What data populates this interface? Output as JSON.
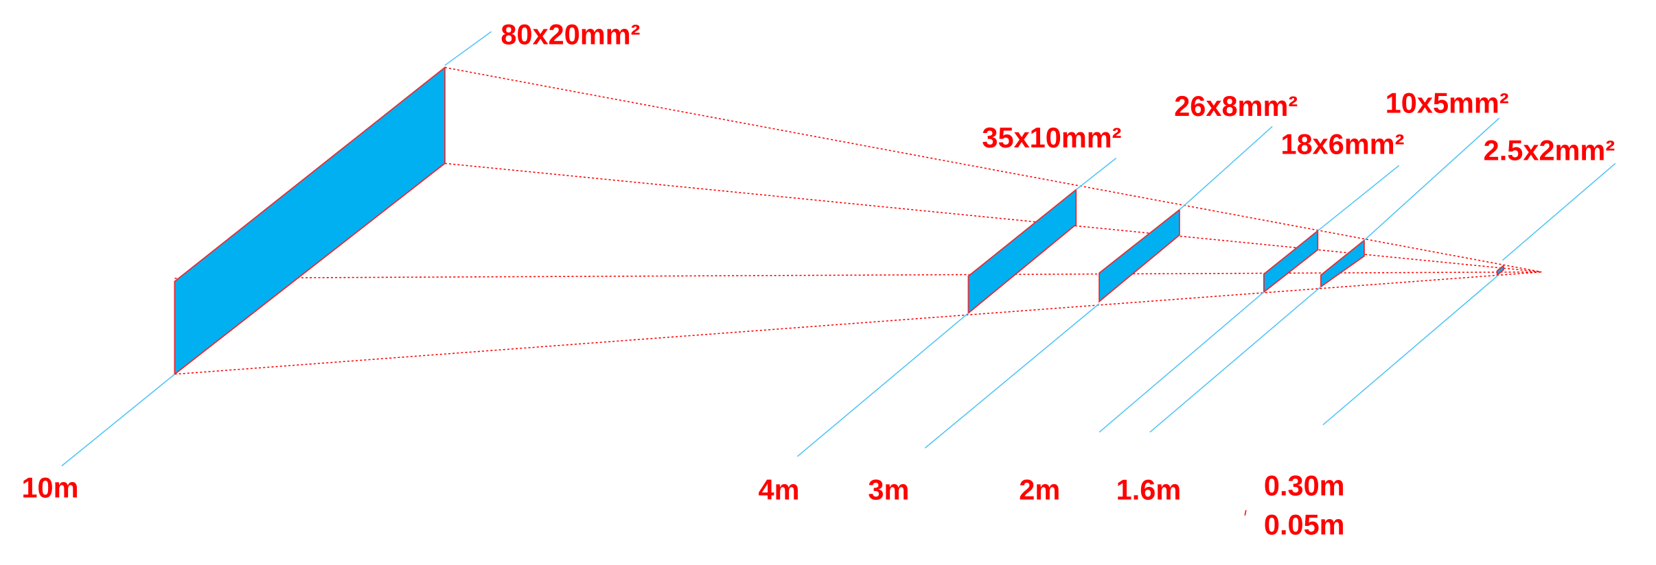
{
  "size_labels": [
    "80x20mm²",
    "35x10mm²",
    "26x8mm²",
    "18x6mm²",
    "10x5mm²",
    "2.5x2mm²"
  ],
  "distance_labels": [
    "10m",
    "4m",
    "3m",
    "2m",
    "1.6m",
    "0.30m",
    "0.05m"
  ]
}
